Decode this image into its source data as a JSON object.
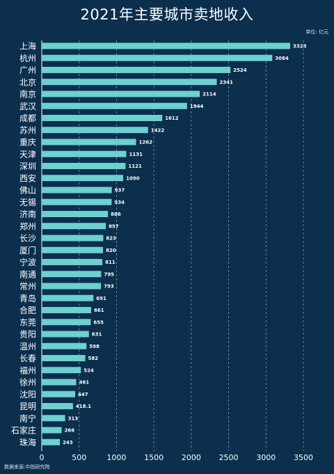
{
  "title": "2021年主要城市卖地收入",
  "unit_label": "单位: 亿元",
  "source_label": "数据来源:中指研究院",
  "colors": {
    "background": "#0b2f4d",
    "bar": "#6ed0cf",
    "grid": "#a8c2d6",
    "text": "#ffffff"
  },
  "chart_data": {
    "type": "bar",
    "orientation": "horizontal",
    "title": "2021年主要城市卖地收入",
    "categories": [
      "上海",
      "杭州",
      "广州",
      "北京",
      "南京",
      "武汉",
      "成都",
      "苏州",
      "重庆",
      "天津",
      "深圳",
      "西安",
      "佛山",
      "无锡",
      "济南",
      "郑州",
      "长沙",
      "厦门",
      "宁波",
      "南通",
      "常州",
      "青岛",
      "合肥",
      "东莞",
      "贵阳",
      "温州",
      "长春",
      "福州",
      "徐州",
      "沈阳",
      "昆明",
      "南宁",
      "石家庄",
      "珠海"
    ],
    "values": [
      3323,
      3084,
      2524,
      2341,
      2114,
      1944,
      1612,
      1422,
      1262,
      1131,
      1121,
      1090,
      937,
      934,
      886,
      857,
      823,
      820,
      811,
      795,
      793,
      691,
      661,
      655,
      631,
      598,
      582,
      524,
      461,
      447,
      418.1,
      313,
      266,
      243
    ],
    "value_labels": [
      "3323",
      "3084",
      "2524",
      "2341",
      "2114",
      "1944",
      "1612",
      "1422",
      "1262",
      "1131",
      "1121",
      "1090",
      "937",
      "934",
      "886",
      "857",
      "823",
      "820",
      "811",
      "795",
      "793",
      "691",
      "661",
      "655",
      "631",
      "598",
      "582",
      "524",
      "461",
      "447",
      "418.1",
      "313",
      "266",
      "243"
    ],
    "xticks": [
      "0",
      "500",
      "1000",
      "1500",
      "2000",
      "2500",
      "3000",
      "3500"
    ],
    "xlim": [
      0,
      3500
    ],
    "grid": "vertical dashed",
    "legend": "none"
  }
}
